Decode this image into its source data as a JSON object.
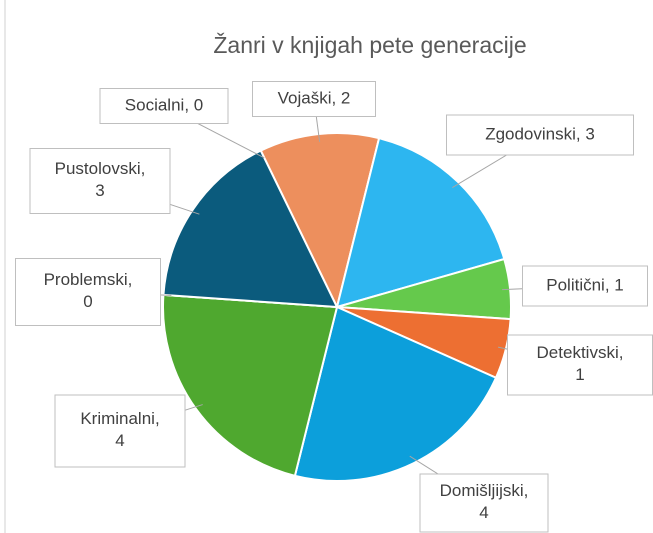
{
  "chart_data": {
    "type": "pie",
    "title": "Žanri v knjigah pete generacije",
    "categories": [
      "Socialni",
      "Vojaški",
      "Zgodovinski",
      "Politični",
      "Detektivski",
      "Domišljijski",
      "Kriminalni",
      "Problemski",
      "Pustolovski"
    ],
    "values": [
      0,
      2,
      3,
      1,
      1,
      4,
      4,
      0,
      3
    ],
    "value_labels": [
      "Socialni, 0",
      "Vojaški, 2",
      "Zgodovinski, 3",
      "Politični, 1",
      "Detektivski, 1",
      "Domišljijski, 4",
      "Kriminalni, 4",
      "Problemski, 0",
      "Pustolovski, 3"
    ],
    "colors": [
      null,
      "#ED8F5D",
      "#2DB6F0",
      "#65C94C",
      "#ED6F32",
      "#0C9FDB",
      "#4FA82F",
      null,
      "#0B5B7D"
    ]
  }
}
